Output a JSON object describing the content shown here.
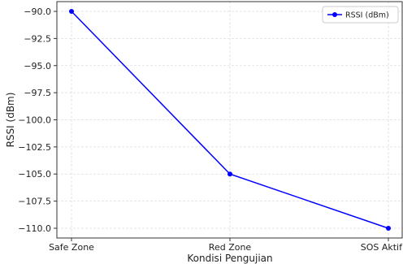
{
  "chart_data": {
    "type": "line",
    "categories": [
      "Safe Zone",
      "Red Zone",
      "SOS Aktif"
    ],
    "series": [
      {
        "name": "RSSI (dBm)",
        "values": [
          -90,
          -105,
          -110
        ],
        "color": "#0000ff"
      }
    ],
    "xlabel": "Kondisi Pengujian",
    "ylabel": "RSSI (dBm)",
    "ylim": [
      -110.9,
      -89.1
    ],
    "yticks": [
      -90.0,
      -92.5,
      -95.0,
      -97.5,
      -100.0,
      -102.5,
      -105.0,
      -107.5,
      -110.0
    ],
    "ytick_labels": [
      "−90.0",
      "−92.5",
      "−95.0",
      "−97.5",
      "−100.0",
      "−102.5",
      "−105.0",
      "−107.5",
      "−110.0"
    ],
    "grid": true,
    "legend_position": "top-right"
  }
}
